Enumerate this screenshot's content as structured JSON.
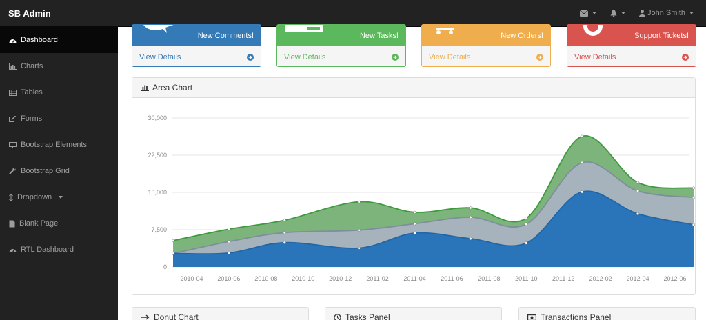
{
  "navbar": {
    "brand": "SB Admin",
    "user_name": "John Smith",
    "icons": [
      "envelope-icon",
      "bell-icon",
      "user-icon"
    ]
  },
  "sidebar": {
    "items": [
      {
        "label": "Dashboard",
        "icon": "dashboard-icon",
        "active": true
      },
      {
        "label": "Charts",
        "icon": "bar-chart-icon"
      },
      {
        "label": "Tables",
        "icon": "table-icon"
      },
      {
        "label": "Forms",
        "icon": "edit-icon"
      },
      {
        "label": "Bootstrap Elements",
        "icon": "desktop-icon"
      },
      {
        "label": "Bootstrap Grid",
        "icon": "wrench-icon"
      },
      {
        "label": "Dropdown",
        "icon": "arrows-v-icon",
        "has_caret": true
      },
      {
        "label": "Blank Page",
        "icon": "file-icon"
      },
      {
        "label": "RTL Dashboard",
        "icon": "dashboard-icon"
      }
    ]
  },
  "cards": [
    {
      "label": "New Comments!",
      "link": "View Details",
      "color": "#337ab7",
      "icon": "comments-icon"
    },
    {
      "label": "New Tasks!",
      "link": "View Details",
      "color": "#5cb85c",
      "icon": "tasks-icon"
    },
    {
      "label": "New Orders!",
      "link": "View Details",
      "color": "#f0ad4e",
      "icon": "shopping-cart-icon"
    },
    {
      "label": "Support Tickets!",
      "link": "View Details",
      "color": "#d9534f",
      "icon": "support-icon"
    }
  ],
  "area_panel": {
    "title": "Area Chart",
    "icon": "bar-chart-icon"
  },
  "bottom_panels": [
    {
      "title": "Donut Chart",
      "icon": "long-arrow-right-icon"
    },
    {
      "title": "Tasks Panel",
      "icon": "clock-icon"
    },
    {
      "title": "Transactions Panel",
      "icon": "money-icon"
    }
  ],
  "chart_data": {
    "type": "area",
    "x": [
      "2010-03",
      "2010-06",
      "2010-09",
      "2011-01",
      "2011-04",
      "2011-07",
      "2011-10",
      "2012-01",
      "2012-04",
      "2012-07"
    ],
    "x_tick_labels": [
      "2010-04",
      "2010-06",
      "2010-08",
      "2010-10",
      "2010-12",
      "2011-02",
      "2011-04",
      "2011-06",
      "2011-08",
      "2011-10",
      "2011-12",
      "2012-02",
      "2012-04",
      "2012-06"
    ],
    "series": [
      {
        "name": "",
        "color": "#2a74b9",
        "values": [
          2700,
          2800,
          4900,
          3800,
          6800,
          5700,
          4800,
          15100,
          10700,
          8500
        ]
      },
      {
        "name": "",
        "color": "#a7b3bc",
        "values": [
          2700,
          5100,
          6900,
          7400,
          8700,
          10000,
          8600,
          21000,
          15300,
          14000
        ]
      },
      {
        "name": "",
        "color": "#7cb47c",
        "values": [
          5300,
          7600,
          9400,
          13100,
          11000,
          11900,
          9800,
          26300,
          17000,
          15900
        ]
      }
    ],
    "y_ticks": [
      "0",
      "7,500",
      "15,000",
      "22,500",
      "30,000"
    ],
    "ylim": [
      0,
      30000
    ],
    "grid": true
  }
}
